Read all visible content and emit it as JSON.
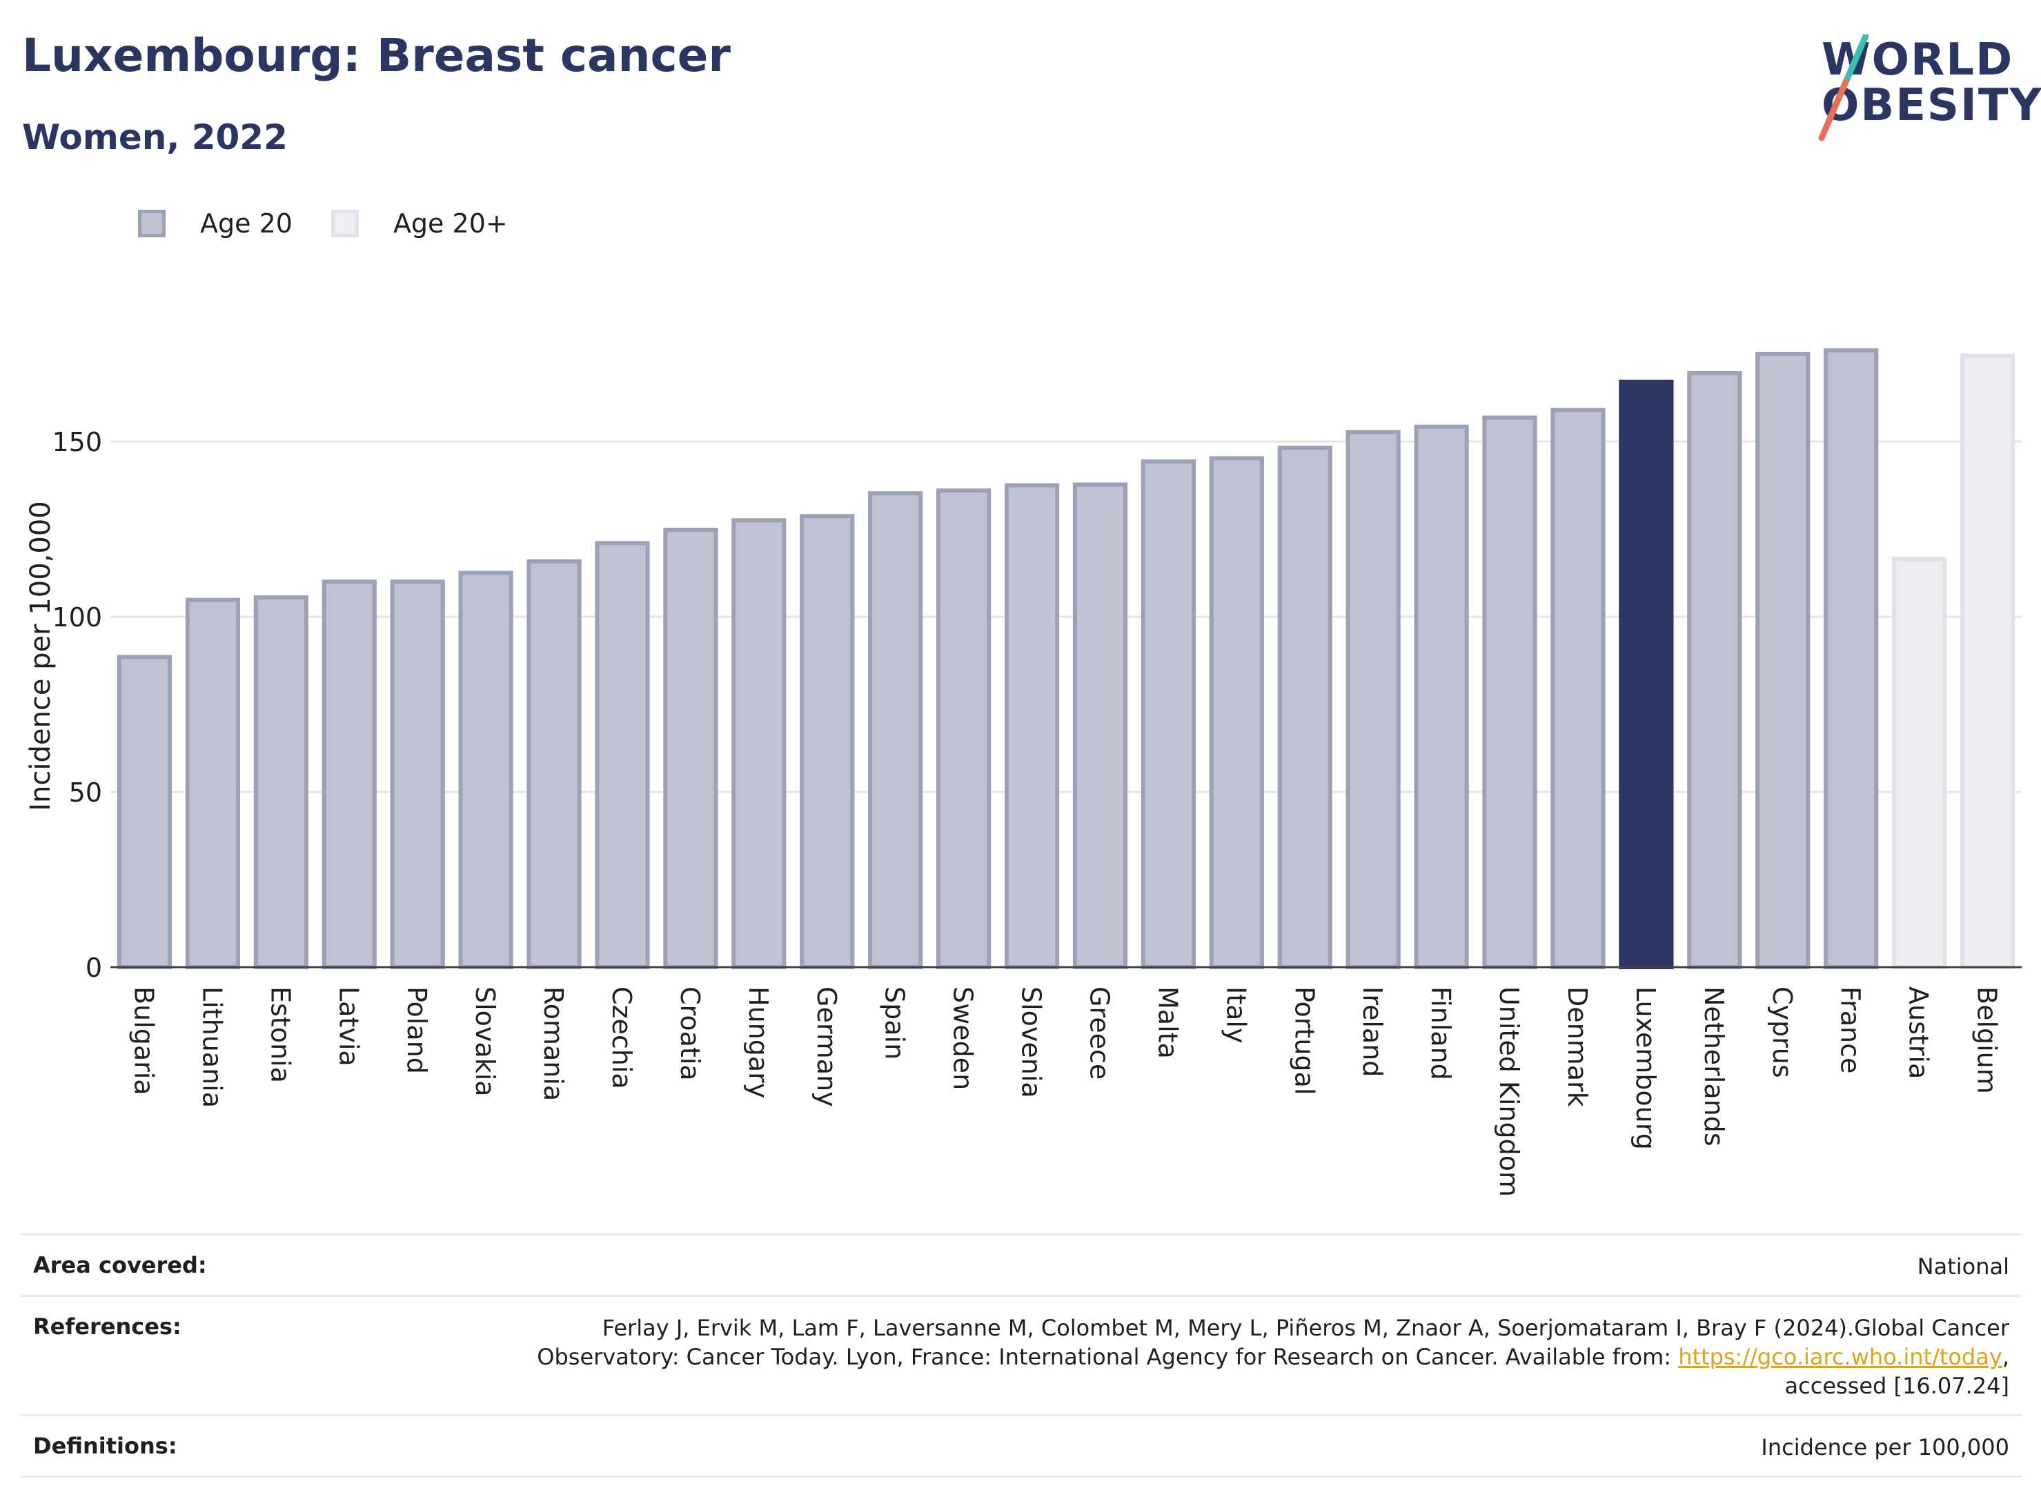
{
  "header": {
    "title": "Luxembourg: Breast cancer",
    "subtitle": "Women, 2022"
  },
  "logo": {
    "line1": "WORLD",
    "line2": "OBESITY"
  },
  "legend": [
    {
      "label": "Age 20",
      "color": "#bfc2d0",
      "border": "#9da1b8"
    },
    {
      "label": "Age 20+",
      "color": "#eceef2",
      "border": "#e0e2e8"
    }
  ],
  "chart_data": {
    "type": "bar",
    "ylabel": "Incidence per 100,000",
    "ylim": [
      0,
      190
    ],
    "yticks": [
      0,
      50,
      100,
      150
    ],
    "grid": true,
    "legend_position": "top-left",
    "categories": [
      "Bulgaria",
      "Lithuania",
      "Estonia",
      "Latvia",
      "Poland",
      "Slovakia",
      "Romania",
      "Czechia",
      "Croatia",
      "Hungary",
      "Germany",
      "Spain",
      "Sweden",
      "Slovenia",
      "Greece",
      "Malta",
      "Italy",
      "Portugal",
      "Ireland",
      "Finland",
      "United Kingdom",
      "Denmark",
      "Luxembourg",
      "Netherlands",
      "Cyprus",
      "France",
      "Austria",
      "Belgium"
    ],
    "values": [
      88.5,
      104.8,
      105.5,
      110.0,
      110.0,
      112.5,
      115.8,
      121.0,
      124.8,
      127.5,
      128.7,
      135.2,
      136.0,
      137.5,
      137.7,
      144.3,
      145.2,
      148.2,
      152.7,
      154.2,
      156.8,
      159.0,
      167.0,
      169.5,
      175.0,
      176.0,
      116.5,
      174.5
    ],
    "groups": [
      "Age 20",
      "Age 20",
      "Age 20",
      "Age 20",
      "Age 20",
      "Age 20",
      "Age 20",
      "Age 20",
      "Age 20",
      "Age 20",
      "Age 20",
      "Age 20",
      "Age 20",
      "Age 20",
      "Age 20",
      "Age 20",
      "Age 20",
      "Age 20",
      "Age 20",
      "Age 20",
      "Age 20",
      "Age 20",
      "Age 20",
      "Age 20",
      "Age 20",
      "Age 20",
      "Age 20+",
      "Age 20+"
    ],
    "highlight": "Luxembourg",
    "colors": {
      "age20_fill": "#bfc2d0",
      "age20_border": "#9da1b8",
      "age20plus_fill": "#eceef2",
      "age20plus_border": "#e0e2e8",
      "highlight_fill": "#2a3561"
    }
  },
  "footer": {
    "area_label": "Area covered:",
    "area_value": "National",
    "references_label": "References:",
    "references_text": "Ferlay J, Ervik M, Lam F, Laversanne M, Colombet M, Mery L, Piñeros M, Znaor A, Soerjomataram I, Bray F (2024).Global Cancer Observatory: Cancer Today. Lyon, France: International Agency for Research on Cancer. Available from:",
    "references_link": "https://gco.iarc.who.int/today",
    "references_suffix": ", accessed [16.07.24]",
    "definitions_label": "Definitions:",
    "definitions_value": "Incidence per 100,000"
  }
}
